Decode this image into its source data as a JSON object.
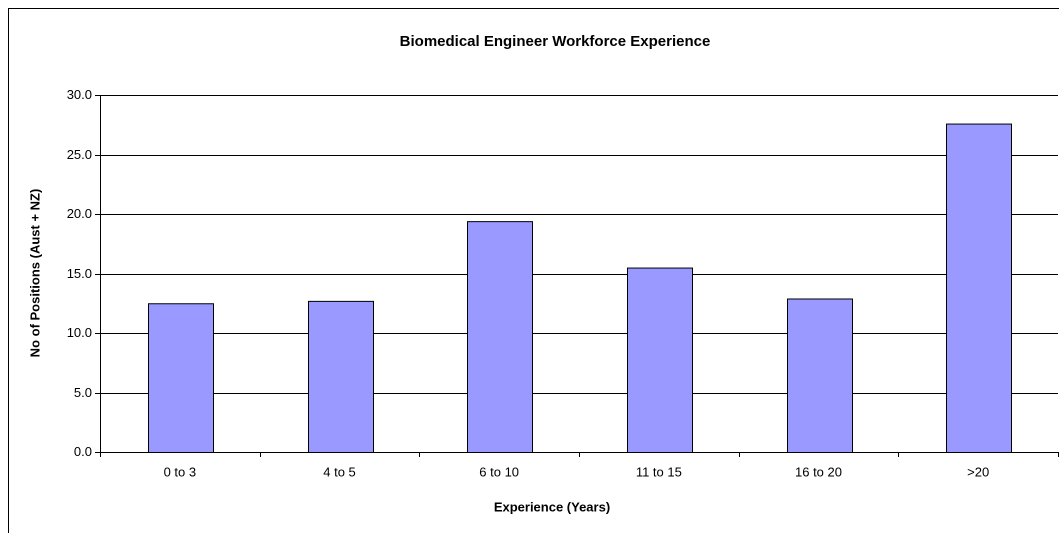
{
  "chart_data": {
    "type": "bar",
    "title": "Biomedical Engineer Workforce Experience",
    "x_label": "Experience (Years)",
    "y_label": "No of Positions (Aust + NZ)",
    "categories": [
      "0 to 3",
      "4 to 5",
      "6 to 10",
      "11 to 15",
      "16 to 20",
      ">20"
    ],
    "values": [
      12.5,
      12.7,
      19.4,
      15.5,
      12.9,
      27.6
    ],
    "color": "#9999ff",
    "ylim": [
      0,
      30
    ],
    "yticks": [
      {
        "value": 0,
        "label": "0.0"
      },
      {
        "value": 5,
        "label": "5.0"
      },
      {
        "value": 10,
        "label": "10.0"
      },
      {
        "value": 15,
        "label": "15.0"
      },
      {
        "value": 20,
        "label": "20.0"
      },
      {
        "value": 25,
        "label": "25.0"
      },
      {
        "value": 30,
        "label": "30.0"
      }
    ],
    "grid": true
  }
}
